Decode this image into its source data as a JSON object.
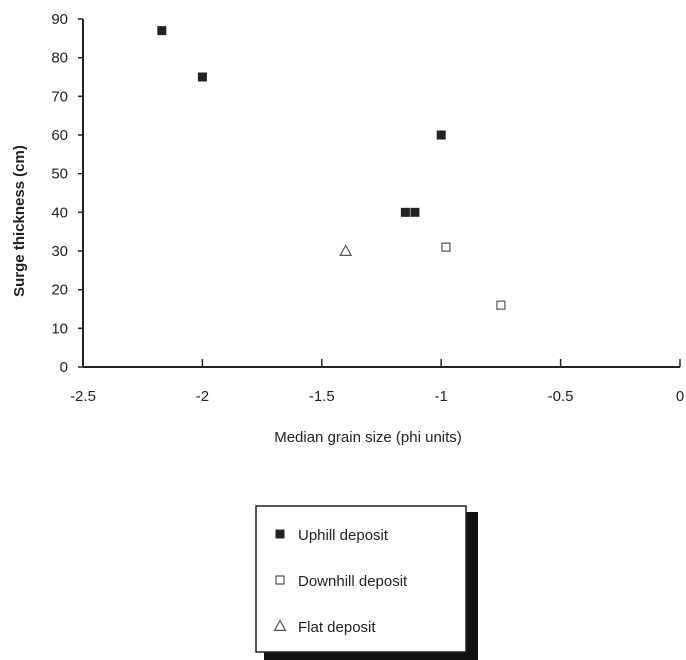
{
  "chart_data": {
    "type": "scatter",
    "title": "",
    "xlabel": "Median grain size (phi units)",
    "ylabel": "Surge thickness (cm)",
    "xlim": [
      -2.5,
      0
    ],
    "ylim": [
      0,
      90
    ],
    "x_ticks": [
      -2.5,
      -2,
      -1.5,
      -1,
      -0.5,
      0
    ],
    "y_ticks": [
      0,
      10,
      20,
      30,
      40,
      50,
      60,
      70,
      80,
      90
    ],
    "x_tick_labels": [
      "-2.5",
      "-2",
      "-1.5",
      "-1",
      "-0.5",
      "0"
    ],
    "y_tick_labels": [
      "0",
      "10",
      "20",
      "30",
      "40",
      "50",
      "60",
      "70",
      "80",
      "90"
    ],
    "grid": false,
    "legend_position": "bottom",
    "series": [
      {
        "name": "Uphill deposit",
        "marker": "filled-square",
        "color": "#222222",
        "points": [
          {
            "x": -2.17,
            "y": 87
          },
          {
            "x": -2.0,
            "y": 75
          },
          {
            "x": -1.0,
            "y": 60
          },
          {
            "x": -1.15,
            "y": 40
          },
          {
            "x": -1.11,
            "y": 40
          }
        ]
      },
      {
        "name": "Downhill deposit",
        "marker": "open-square",
        "color": "#555555",
        "points": [
          {
            "x": -0.98,
            "y": 31
          },
          {
            "x": -0.75,
            "y": 16
          }
        ]
      },
      {
        "name": "Flat deposit",
        "marker": "open-triangle",
        "color": "#555555",
        "points": [
          {
            "x": -1.4,
            "y": 30
          }
        ]
      }
    ]
  }
}
